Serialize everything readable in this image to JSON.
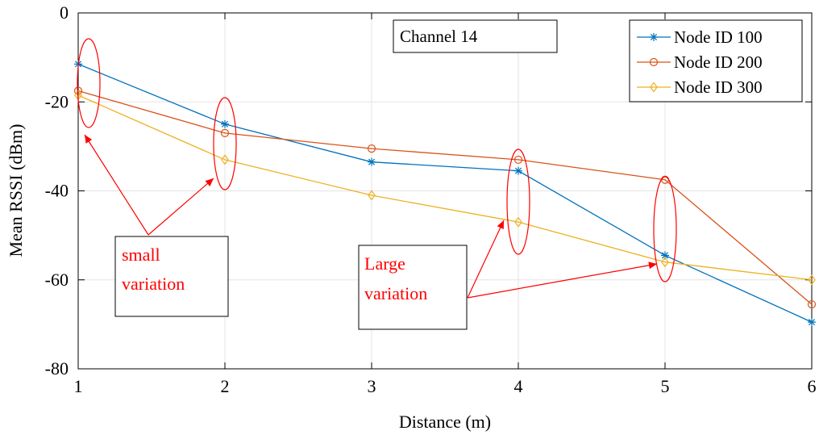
{
  "chart_data": {
    "type": "line",
    "title": "",
    "xlabel": "Distance (m)",
    "ylabel": "Mean RSSI (dBm)",
    "xlim": [
      1,
      6
    ],
    "ylim": [
      -80,
      0
    ],
    "xticks": [
      1,
      2,
      3,
      4,
      5,
      6
    ],
    "yticks": [
      0,
      -20,
      -40,
      -60,
      -80
    ],
    "grid": true,
    "legend_position": "top-right",
    "x": [
      1,
      2,
      3,
      4,
      5,
      6
    ],
    "series": [
      {
        "name": "Node ID 100",
        "color": "#0072BD",
        "marker": "asterisk",
        "values": [
          -11.5,
          -25,
          -33.5,
          -35.5,
          -54.5,
          -69.5
        ]
      },
      {
        "name": "Node ID 200",
        "color": "#D95319",
        "marker": "circle",
        "values": [
          -17.5,
          -27,
          -30.5,
          -33,
          -37.5,
          -65.5
        ]
      },
      {
        "name": "Node ID 300",
        "color": "#EDB120",
        "marker": "diamond",
        "values": [
          -18.5,
          -33,
          -41,
          -47,
          -56,
          -60
        ]
      }
    ],
    "annotations": {
      "box_label": "Channel 14",
      "small_variation": {
        "line1": "small",
        "line2": "variation",
        "highlight_x": [
          1,
          2
        ]
      },
      "large_variation": {
        "line1": "Large",
        "line2": "variation",
        "highlight_x": [
          4,
          5
        ]
      }
    }
  }
}
